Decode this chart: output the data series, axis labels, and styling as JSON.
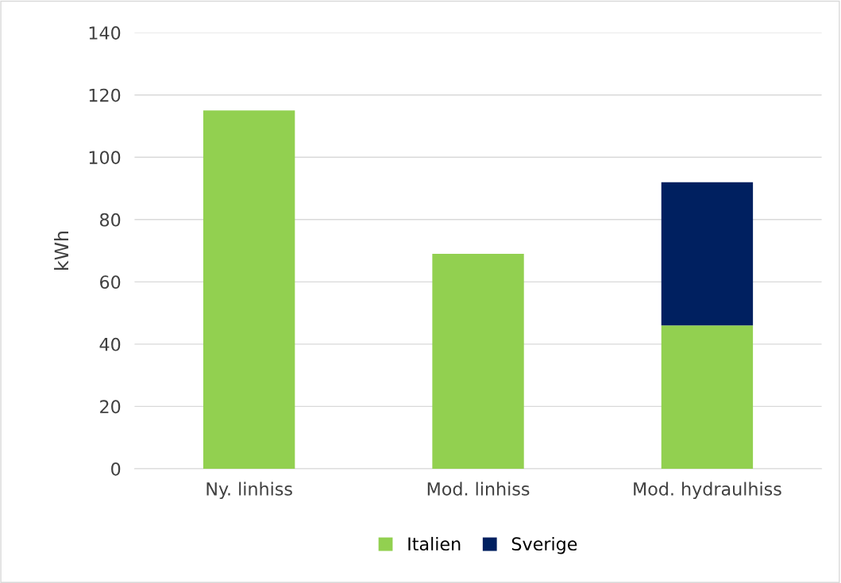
{
  "chart_data": {
    "type": "bar",
    "ylabel": "kWh",
    "categories": [
      "Ny. linhiss",
      "Mod. linhiss",
      "Mod. hydraulhiss"
    ],
    "series": [
      {
        "name": "Italien",
        "color": "#92d050",
        "values": [
          115,
          69,
          46
        ]
      },
      {
        "name": "Sverige",
        "color": "#002060",
        "values": [
          null,
          null,
          46
        ]
      }
    ],
    "stacked": true,
    "ylim": [
      0,
      140
    ],
    "yticks": [
      0,
      20,
      40,
      60,
      80,
      100,
      120,
      140
    ],
    "grid": "y",
    "legend": "bottom"
  }
}
